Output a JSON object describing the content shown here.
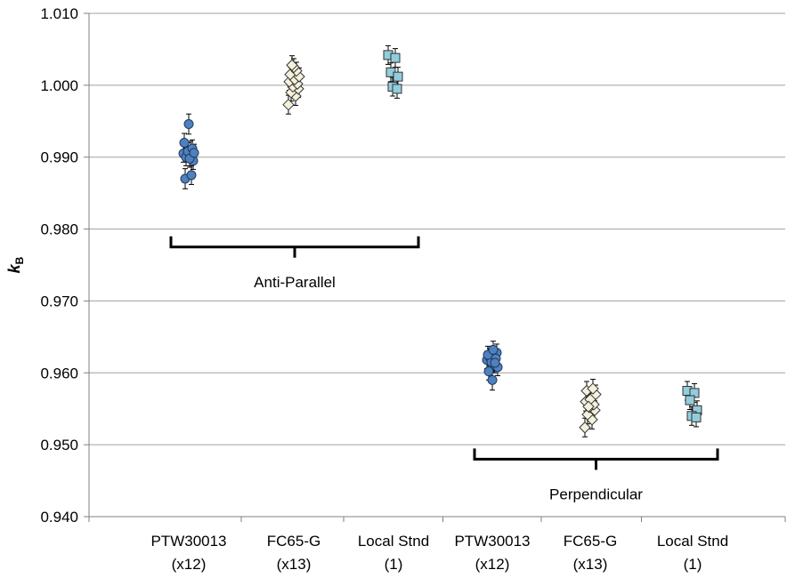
{
  "chart_data": {
    "type": "scatter",
    "title": "",
    "ylabel": "k",
    "ylabel_subscript": "B",
    "ylim": [
      0.94,
      1.01
    ],
    "y_ticks": [
      "0.940",
      "0.950",
      "0.960",
      "0.970",
      "0.980",
      "0.990",
      "1.000",
      "1.010"
    ],
    "grid": true,
    "legend": "none",
    "categories": [
      {
        "line1": "PTW30013",
        "line2": "(x12)"
      },
      {
        "line1": "FC65-G",
        "line2": "(x13)"
      },
      {
        "line1": "Local Stnd",
        "line2": "(1)"
      },
      {
        "line1": "PTW30013",
        "line2": "(x12)"
      },
      {
        "line1": "FC65-G",
        "line2": "(x13)"
      },
      {
        "line1": "Local Stnd",
        "line2": "(1)"
      }
    ],
    "groups": [
      {
        "label": "Anti-Parallel",
        "categories": [
          0,
          1,
          2
        ],
        "bracket_y": 0.9775
      },
      {
        "label": "Perpendicular",
        "categories": [
          3,
          4,
          5
        ],
        "bracket_y": 0.948
      }
    ],
    "series": [
      {
        "category": 0,
        "marker": "circle",
        "color": "#4F81BD",
        "points": [
          {
            "y": 0.9905,
            "err": 0.0012
          },
          {
            "y": 0.991,
            "err": 0.0012
          },
          {
            "y": 0.99,
            "err": 0.0012
          },
          {
            "y": 0.9895,
            "err": 0.0012
          },
          {
            "y": 0.9908,
            "err": 0.0012
          },
          {
            "y": 0.9912,
            "err": 0.0012
          },
          {
            "y": 0.992,
            "err": 0.0013
          },
          {
            "y": 0.9898,
            "err": 0.0012
          },
          {
            "y": 0.9906,
            "err": 0.0012
          },
          {
            "y": 0.987,
            "err": 0.0014
          },
          {
            "y": 0.9875,
            "err": 0.0013
          },
          {
            "y": 0.9946,
            "err": 0.0014
          }
        ]
      },
      {
        "category": 1,
        "marker": "diamond",
        "color": "#F4F1DC",
        "points": [
          {
            "y": 0.9973,
            "err": 0.0013
          },
          {
            "y": 0.9985,
            "err": 0.0013
          },
          {
            "y": 0.999,
            "err": 0.0012
          },
          {
            "y": 0.9995,
            "err": 0.0012
          },
          {
            "y": 0.9998,
            "err": 0.0012
          },
          {
            "y": 1.0002,
            "err": 0.0012
          },
          {
            "y": 1.0005,
            "err": 0.0012
          },
          {
            "y": 1.0008,
            "err": 0.0012
          },
          {
            "y": 1.0012,
            "err": 0.0012
          },
          {
            "y": 1.0015,
            "err": 0.0012
          },
          {
            "y": 1.002,
            "err": 0.0012
          },
          {
            "y": 1.0025,
            "err": 0.0012
          },
          {
            "y": 1.0028,
            "err": 0.0013
          }
        ]
      },
      {
        "category": 2,
        "marker": "square",
        "color": "#92CDDC",
        "points": [
          {
            "y": 1.0042,
            "err": 0.0013
          },
          {
            "y": 1.0038,
            "err": 0.0013
          },
          {
            "y": 1.0018,
            "err": 0.0013
          },
          {
            "y": 1.0012,
            "err": 0.0013
          },
          {
            "y": 0.9998,
            "err": 0.0013
          },
          {
            "y": 0.9995,
            "err": 0.0013
          }
        ]
      },
      {
        "category": 3,
        "marker": "circle",
        "color": "#4F81BD",
        "points": [
          {
            "y": 0.9618,
            "err": 0.0012
          },
          {
            "y": 0.9612,
            "err": 0.0012
          },
          {
            "y": 0.9622,
            "err": 0.0012
          },
          {
            "y": 0.9628,
            "err": 0.0012
          },
          {
            "y": 0.9615,
            "err": 0.0012
          },
          {
            "y": 0.962,
            "err": 0.0012
          },
          {
            "y": 0.9625,
            "err": 0.0012
          },
          {
            "y": 0.9632,
            "err": 0.0012
          },
          {
            "y": 0.9608,
            "err": 0.0012
          },
          {
            "y": 0.9602,
            "err": 0.0012
          },
          {
            "y": 0.9614,
            "err": 0.0012
          },
          {
            "y": 0.959,
            "err": 0.0014
          }
        ]
      },
      {
        "category": 4,
        "marker": "diamond",
        "color": "#F4F1DC",
        "points": [
          {
            "y": 0.9524,
            "err": 0.0013
          },
          {
            "y": 0.9535,
            "err": 0.0013
          },
          {
            "y": 0.9542,
            "err": 0.0013
          },
          {
            "y": 0.9548,
            "err": 0.0013
          },
          {
            "y": 0.9552,
            "err": 0.0013
          },
          {
            "y": 0.9556,
            "err": 0.0013
          },
          {
            "y": 0.956,
            "err": 0.0013
          },
          {
            "y": 0.9565,
            "err": 0.0013
          },
          {
            "y": 0.957,
            "err": 0.0013
          },
          {
            "y": 0.9575,
            "err": 0.0013
          },
          {
            "y": 0.9578,
            "err": 0.0013
          },
          {
            "y": 0.9563,
            "err": 0.0013
          },
          {
            "y": 0.9553,
            "err": 0.0013
          }
        ]
      },
      {
        "category": 5,
        "marker": "square",
        "color": "#92CDDC",
        "points": [
          {
            "y": 0.9575,
            "err": 0.0013
          },
          {
            "y": 0.9572,
            "err": 0.0013
          },
          {
            "y": 0.9562,
            "err": 0.0013
          },
          {
            "y": 0.9548,
            "err": 0.0013
          },
          {
            "y": 0.954,
            "err": 0.0013
          },
          {
            "y": 0.9538,
            "err": 0.0013
          }
        ]
      }
    ]
  }
}
